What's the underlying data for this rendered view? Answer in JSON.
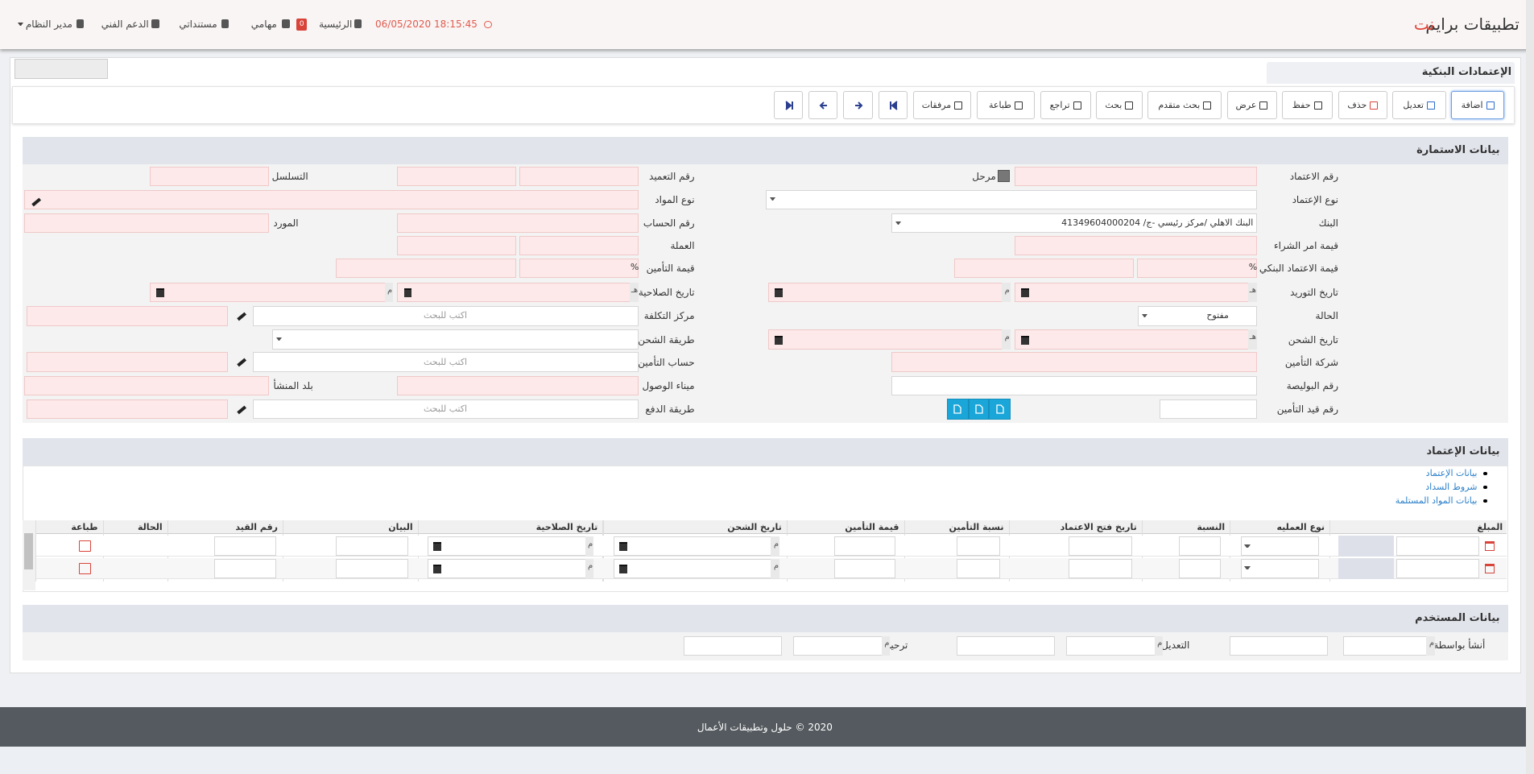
{
  "header": {
    "brand": "تطبيقات برايم",
    "brand_suffix": "نت",
    "datetime": "18:15:45 06/05/2020",
    "badge": "0",
    "nav": [
      "الرئيسية",
      "مهامي",
      "مستنداتي",
      "الدعم الفني",
      "مدير النظام"
    ]
  },
  "page_title": "الإعتمادات البنكية",
  "toolbar": [
    "اضافة",
    "تعديل",
    "حذف",
    "حفظ",
    "عرض",
    "بحث متقدم",
    "بحث",
    "تراجع",
    "طباعة",
    "مرفقات"
  ],
  "form": {
    "title": "بيانات الاستمارة",
    "labels": [
      "رقم الاعتماد",
      "نوع الإعتماد",
      "البنك",
      "قيمة امر الشراء",
      "قيمة الاعتماد البنكي",
      "تاريخ التوريد",
      "الحالة",
      "تاريخ الشحن",
      "شركة التأمين",
      "رقم البوليصة",
      "رقم قيد التأمين",
      "رقم التعميد",
      "نوع المواد",
      "رقم الحساب",
      "العملة",
      "قيمة التأمين",
      "تاريخ الصلاحية",
      "مركز التكلفة",
      "طريقة الشحن",
      "حساب التأمين",
      "ميناء الوصول",
      "طريقة الدفع",
      "التسلسل",
      "المورد",
      "بلد المنشأ"
    ],
    "posted_label": "مرحل",
    "bank_value": "البنك الاهلي /مركز رئيسي -ج/ 41349604000204",
    "status_value": "مفتوح",
    "search_placeholder": "اكتب للبحث",
    "percent_sign": "%",
    "hijri_sign": "هـ",
    "gregorian_sign": "م"
  },
  "credit": {
    "title": "بيانات الإعتماد",
    "links": [
      "بيانات الإعتماد",
      "شروط السداد",
      "بيانات المواد المستلمة"
    ],
    "headers": [
      "المبلغ",
      "نوع العمليه",
      "النسبة",
      "تاريخ فتح الاعتماد",
      "نسبة التأمين",
      "قيمة التأمين",
      "تاريخ الشحن",
      "تاريخ الصلاحية",
      "البيان",
      "رقم القيد",
      "الحالة",
      "طباعة"
    ]
  },
  "user": {
    "title": "بيانات المستخدم",
    "labels": [
      "أنشأ بواسطة",
      "التعديل",
      "ترحيل"
    ]
  },
  "footer": "2020 © حلول وتطبيقات الأعمال"
}
